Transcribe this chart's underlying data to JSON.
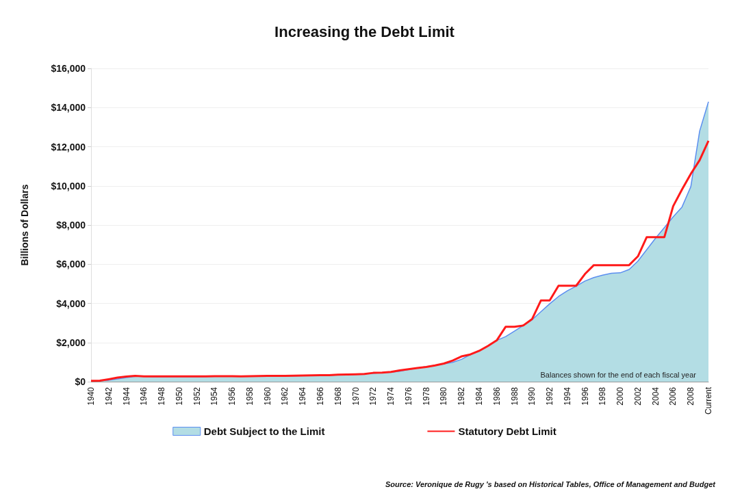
{
  "chart_data": {
    "type": "line",
    "title": "Increasing the Debt Limit",
    "ylabel": "Billions of Dollars",
    "categories": [
      "1940",
      null,
      "1942",
      null,
      "1944",
      null,
      "1946",
      null,
      "1948",
      null,
      "1950",
      null,
      "1952",
      null,
      "1954",
      null,
      "1956",
      null,
      "1958",
      null,
      "1960",
      null,
      "1962",
      null,
      "1964",
      null,
      "1966",
      null,
      "1968",
      null,
      "1970",
      null,
      "1972",
      null,
      "1974",
      null,
      "1976",
      null,
      "1978",
      null,
      "1980",
      null,
      "1982",
      null,
      "1984",
      null,
      "1986",
      null,
      "1988",
      null,
      "1990",
      null,
      "1992",
      null,
      "1994",
      null,
      "1996",
      null,
      "1998",
      null,
      "2000",
      null,
      "2002",
      null,
      "2004",
      null,
      "2006",
      null,
      "2008",
      null,
      "Current"
    ],
    "series": [
      {
        "name": "Debt Subject to the Limit",
        "type": "area",
        "color": "#5b8ef0",
        "values": [
          43,
          49,
          74,
          140,
          208,
          268,
          268,
          256,
          250,
          251,
          255,
          253,
          257,
          266,
          271,
          274,
          273,
          271,
          276,
          282,
          283,
          285,
          298,
          301,
          307,
          313,
          316,
          323,
          348,
          356,
          373,
          399,
          428,
          459,
          476,
          534,
          622,
          700,
          772,
          830,
          908,
          986,
          1140,
          1380,
          1565,
          1818,
          2111,
          2300,
          2580,
          2870,
          3160,
          3570,
          3980,
          4350,
          4640,
          4880,
          5140,
          5320,
          5440,
          5540,
          5560,
          5730,
          6160,
          6740,
          7330,
          7870,
          8420,
          8920,
          9960,
          12800,
          14300
        ]
      },
      {
        "name": "Statutory Debt Limit",
        "type": "line",
        "color": "#ff1a1a",
        "values": [
          45,
          49,
          125,
          210,
          260,
          300,
          275,
          275,
          275,
          275,
          275,
          275,
          275,
          275,
          281,
          281,
          278,
          275,
          283,
          290,
          293,
          298,
          300,
          307,
          315,
          324,
          328,
          336,
          358,
          365,
          377,
          395,
          450,
          465,
          495,
          577,
          636,
          700,
          752,
          830,
          925,
          1080,
          1290,
          1390,
          1573,
          1824,
          2111,
          2800,
          2800,
          2870,
          3195,
          4145,
          4145,
          4900,
          4900,
          4900,
          5500,
          5950,
          5950,
          5950,
          5950,
          5950,
          6400,
          7384,
          7384,
          7384,
          8965,
          9815,
          10615,
          11315,
          12300
        ]
      }
    ],
    "ylim": [
      0,
      16000
    ],
    "yticks": [
      {
        "value": 0,
        "label": "$0"
      },
      {
        "value": 2000,
        "label": "$2,000"
      },
      {
        "value": 4000,
        "label": "$4,000"
      },
      {
        "value": 6000,
        "label": "$6,000"
      },
      {
        "value": 8000,
        "label": "$8,000"
      },
      {
        "value": 10000,
        "label": "$10,000"
      },
      {
        "value": 12000,
        "label": "$12,000"
      },
      {
        "value": 14000,
        "label": "$14,000"
      },
      {
        "value": 16000,
        "label": "$16,000"
      }
    ],
    "grid": "y",
    "legend": "bottom",
    "marker": "none",
    "annotations": [
      "Balances shown for the end of each fiscal year",
      "Source: Veronique de Rugy 's based on Historical Tables, Office of Management and Budget"
    ]
  }
}
